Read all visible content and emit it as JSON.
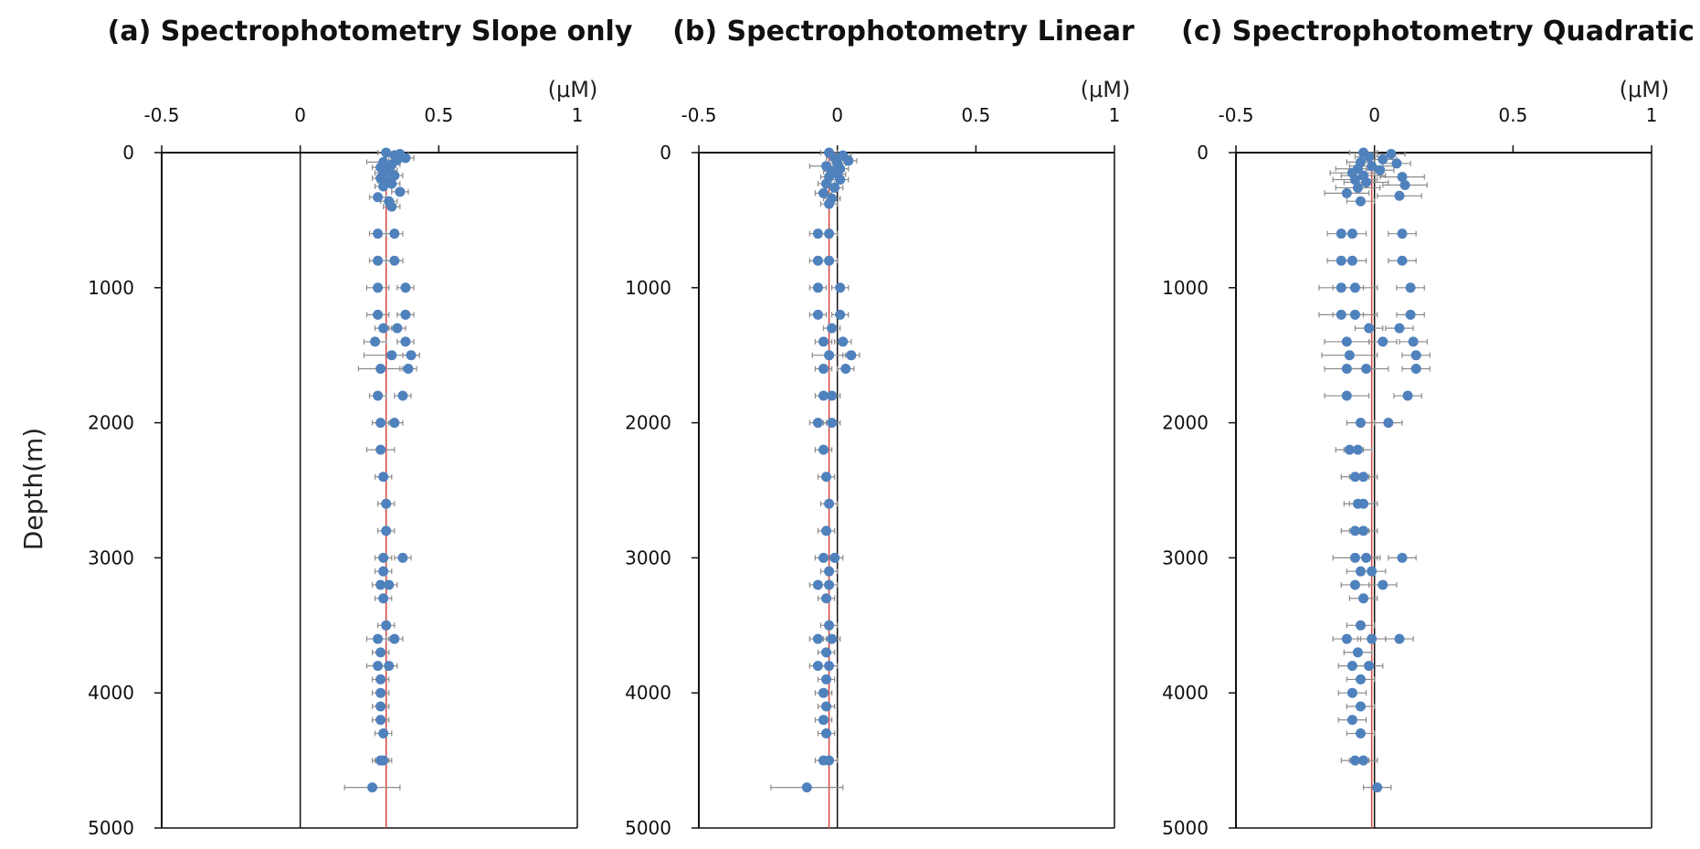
{
  "chart_data": [
    {
      "type": "scatter",
      "title": "(a) Spectrophotometry Slope only",
      "x_unit": "(μM)",
      "ylabel": "Depth(m)",
      "xlim": [
        -0.5,
        1
      ],
      "ylim": [
        0,
        5000
      ],
      "y_inverted": true,
      "x_ticks": [
        "-0.5",
        "0",
        "0.5",
        "1"
      ],
      "y_ticks": [
        "0",
        "1000",
        "2000",
        "3000",
        "4000",
        "5000"
      ],
      "reference_line_x": 0.31,
      "points": [
        {
          "x": 0.31,
          "y": 0,
          "err": 0.03
        },
        {
          "x": 0.36,
          "y": 10,
          "err": 0.03
        },
        {
          "x": 0.34,
          "y": 20,
          "err": 0.03
        },
        {
          "x": 0.38,
          "y": 40,
          "err": 0.03
        },
        {
          "x": 0.35,
          "y": 55,
          "err": 0.03
        },
        {
          "x": 0.3,
          "y": 70,
          "err": 0.06
        },
        {
          "x": 0.33,
          "y": 90,
          "err": 0.03
        },
        {
          "x": 0.29,
          "y": 110,
          "err": 0.03
        },
        {
          "x": 0.32,
          "y": 130,
          "err": 0.03
        },
        {
          "x": 0.3,
          "y": 150,
          "err": 0.03
        },
        {
          "x": 0.34,
          "y": 170,
          "err": 0.03
        },
        {
          "x": 0.29,
          "y": 190,
          "err": 0.03
        },
        {
          "x": 0.31,
          "y": 210,
          "err": 0.03
        },
        {
          "x": 0.33,
          "y": 230,
          "err": 0.03
        },
        {
          "x": 0.3,
          "y": 250,
          "err": 0.03
        },
        {
          "x": 0.36,
          "y": 290,
          "err": 0.03
        },
        {
          "x": 0.28,
          "y": 330,
          "err": 0.03
        },
        {
          "x": 0.32,
          "y": 360,
          "err": 0.03
        },
        {
          "x": 0.33,
          "y": 400,
          "err": 0.03
        },
        {
          "x": 0.28,
          "y": 600,
          "err": 0.03
        },
        {
          "x": 0.34,
          "y": 600,
          "err": 0.03
        },
        {
          "x": 0.28,
          "y": 800,
          "err": 0.03
        },
        {
          "x": 0.34,
          "y": 800,
          "err": 0.03
        },
        {
          "x": 0.28,
          "y": 1000,
          "err": 0.04
        },
        {
          "x": 0.38,
          "y": 1000,
          "err": 0.03
        },
        {
          "x": 0.28,
          "y": 1200,
          "err": 0.04
        },
        {
          "x": 0.38,
          "y": 1200,
          "err": 0.03
        },
        {
          "x": 0.3,
          "y": 1300,
          "err": 0.03
        },
        {
          "x": 0.35,
          "y": 1300,
          "err": 0.03
        },
        {
          "x": 0.27,
          "y": 1400,
          "err": 0.04
        },
        {
          "x": 0.38,
          "y": 1400,
          "err": 0.03
        },
        {
          "x": 0.33,
          "y": 1500,
          "err": 0.1
        },
        {
          "x": 0.4,
          "y": 1500,
          "err": 0.03
        },
        {
          "x": 0.29,
          "y": 1600,
          "err": 0.08
        },
        {
          "x": 0.39,
          "y": 1600,
          "err": 0.03
        },
        {
          "x": 0.28,
          "y": 1800,
          "err": 0.03
        },
        {
          "x": 0.37,
          "y": 1800,
          "err": 0.03
        },
        {
          "x": 0.29,
          "y": 2000,
          "err": 0.03
        },
        {
          "x": 0.34,
          "y": 2000,
          "err": 0.03
        },
        {
          "x": 0.29,
          "y": 2200,
          "err": 0.05
        },
        {
          "x": 0.3,
          "y": 2400,
          "err": 0.03
        },
        {
          "x": 0.31,
          "y": 2600,
          "err": 0.03
        },
        {
          "x": 0.31,
          "y": 2800,
          "err": 0.03
        },
        {
          "x": 0.3,
          "y": 3000,
          "err": 0.03
        },
        {
          "x": 0.37,
          "y": 3000,
          "err": 0.03
        },
        {
          "x": 0.3,
          "y": 3100,
          "err": 0.03
        },
        {
          "x": 0.29,
          "y": 3200,
          "err": 0.03
        },
        {
          "x": 0.32,
          "y": 3200,
          "err": 0.03
        },
        {
          "x": 0.3,
          "y": 3300,
          "err": 0.03
        },
        {
          "x": 0.31,
          "y": 3500,
          "err": 0.03
        },
        {
          "x": 0.28,
          "y": 3600,
          "err": 0.04
        },
        {
          "x": 0.34,
          "y": 3600,
          "err": 0.03
        },
        {
          "x": 0.29,
          "y": 3700,
          "err": 0.03
        },
        {
          "x": 0.28,
          "y": 3800,
          "err": 0.04
        },
        {
          "x": 0.32,
          "y": 3800,
          "err": 0.03
        },
        {
          "x": 0.29,
          "y": 3900,
          "err": 0.03
        },
        {
          "x": 0.29,
          "y": 4000,
          "err": 0.03
        },
        {
          "x": 0.29,
          "y": 4100,
          "err": 0.03
        },
        {
          "x": 0.29,
          "y": 4200,
          "err": 0.03
        },
        {
          "x": 0.3,
          "y": 4300,
          "err": 0.03
        },
        {
          "x": 0.29,
          "y": 4500,
          "err": 0.03
        },
        {
          "x": 0.3,
          "y": 4500,
          "err": 0.03
        },
        {
          "x": 0.26,
          "y": 4700,
          "err": 0.1
        }
      ]
    },
    {
      "type": "scatter",
      "title": "(b) Spectrophotometry Linear",
      "x_unit": "(μM)",
      "xlim": [
        -0.5,
        1
      ],
      "ylim": [
        0,
        5000
      ],
      "y_inverted": true,
      "x_ticks": [
        "-0.5",
        "0",
        "0.5",
        "1"
      ],
      "y_ticks": [
        "0",
        "1000",
        "2000",
        "3000",
        "4000",
        "5000"
      ],
      "reference_line_x": -0.03,
      "points": [
        {
          "x": -0.03,
          "y": 0,
          "err": 0.03
        },
        {
          "x": 0.02,
          "y": 20,
          "err": 0.03
        },
        {
          "x": -0.01,
          "y": 40,
          "err": 0.03
        },
        {
          "x": 0.04,
          "y": 60,
          "err": 0.03
        },
        {
          "x": 0.0,
          "y": 80,
          "err": 0.03
        },
        {
          "x": -0.04,
          "y": 100,
          "err": 0.06
        },
        {
          "x": 0.01,
          "y": 120,
          "err": 0.03
        },
        {
          "x": -0.02,
          "y": 140,
          "err": 0.03
        },
        {
          "x": 0.0,
          "y": 160,
          "err": 0.03
        },
        {
          "x": -0.03,
          "y": 180,
          "err": 0.03
        },
        {
          "x": 0.01,
          "y": 200,
          "err": 0.03
        },
        {
          "x": -0.04,
          "y": 230,
          "err": 0.03
        },
        {
          "x": -0.01,
          "y": 260,
          "err": 0.03
        },
        {
          "x": -0.05,
          "y": 300,
          "err": 0.03
        },
        {
          "x": -0.02,
          "y": 340,
          "err": 0.03
        },
        {
          "x": -0.03,
          "y": 380,
          "err": 0.03
        },
        {
          "x": -0.07,
          "y": 600,
          "err": 0.03
        },
        {
          "x": -0.03,
          "y": 600,
          "err": 0.03
        },
        {
          "x": -0.07,
          "y": 800,
          "err": 0.03
        },
        {
          "x": -0.03,
          "y": 800,
          "err": 0.03
        },
        {
          "x": -0.07,
          "y": 1000,
          "err": 0.03
        },
        {
          "x": 0.01,
          "y": 1000,
          "err": 0.03
        },
        {
          "x": -0.07,
          "y": 1200,
          "err": 0.03
        },
        {
          "x": 0.01,
          "y": 1200,
          "err": 0.03
        },
        {
          "x": -0.02,
          "y": 1300,
          "err": 0.03
        },
        {
          "x": -0.05,
          "y": 1400,
          "err": 0.03
        },
        {
          "x": 0.02,
          "y": 1400,
          "err": 0.03
        },
        {
          "x": -0.03,
          "y": 1500,
          "err": 0.06
        },
        {
          "x": 0.05,
          "y": 1500,
          "err": 0.03
        },
        {
          "x": -0.05,
          "y": 1600,
          "err": 0.03
        },
        {
          "x": 0.03,
          "y": 1600,
          "err": 0.03
        },
        {
          "x": -0.05,
          "y": 1800,
          "err": 0.03
        },
        {
          "x": -0.02,
          "y": 1800,
          "err": 0.03
        },
        {
          "x": -0.07,
          "y": 2000,
          "err": 0.03
        },
        {
          "x": -0.02,
          "y": 2000,
          "err": 0.03
        },
        {
          "x": -0.05,
          "y": 2200,
          "err": 0.03
        },
        {
          "x": -0.04,
          "y": 2400,
          "err": 0.03
        },
        {
          "x": -0.03,
          "y": 2600,
          "err": 0.03
        },
        {
          "x": -0.04,
          "y": 2800,
          "err": 0.03
        },
        {
          "x": -0.05,
          "y": 3000,
          "err": 0.03
        },
        {
          "x": -0.01,
          "y": 3000,
          "err": 0.03
        },
        {
          "x": -0.03,
          "y": 3100,
          "err": 0.03
        },
        {
          "x": -0.07,
          "y": 3200,
          "err": 0.03
        },
        {
          "x": -0.03,
          "y": 3200,
          "err": 0.03
        },
        {
          "x": -0.04,
          "y": 3300,
          "err": 0.03
        },
        {
          "x": -0.03,
          "y": 3500,
          "err": 0.03
        },
        {
          "x": -0.07,
          "y": 3600,
          "err": 0.03
        },
        {
          "x": -0.02,
          "y": 3600,
          "err": 0.03
        },
        {
          "x": -0.04,
          "y": 3700,
          "err": 0.03
        },
        {
          "x": -0.07,
          "y": 3800,
          "err": 0.03
        },
        {
          "x": -0.03,
          "y": 3800,
          "err": 0.03
        },
        {
          "x": -0.04,
          "y": 3900,
          "err": 0.03
        },
        {
          "x": -0.05,
          "y": 4000,
          "err": 0.03
        },
        {
          "x": -0.04,
          "y": 4100,
          "err": 0.03
        },
        {
          "x": -0.05,
          "y": 4200,
          "err": 0.03
        },
        {
          "x": -0.04,
          "y": 4300,
          "err": 0.03
        },
        {
          "x": -0.05,
          "y": 4500,
          "err": 0.03
        },
        {
          "x": -0.03,
          "y": 4500,
          "err": 0.03
        },
        {
          "x": -0.11,
          "y": 4700,
          "err": 0.13
        }
      ]
    },
    {
      "type": "scatter",
      "title": "(c) Spectrophotometry Quadratic",
      "x_unit": "(μM)",
      "xlim": [
        -0.5,
        1
      ],
      "ylim": [
        0,
        5000
      ],
      "y_inverted": true,
      "x_ticks": [
        "-0.5",
        "0",
        "0.5",
        "1"
      ],
      "y_ticks": [
        "0",
        "1000",
        "2000",
        "3000",
        "4000",
        "5000"
      ],
      "reference_line_x": -0.01,
      "points": [
        {
          "x": -0.04,
          "y": 0,
          "err": 0.05
        },
        {
          "x": 0.06,
          "y": 10,
          "err": 0.05
        },
        {
          "x": -0.02,
          "y": 30,
          "err": 0.05
        },
        {
          "x": 0.03,
          "y": 50,
          "err": 0.05
        },
        {
          "x": -0.05,
          "y": 70,
          "err": 0.05
        },
        {
          "x": 0.08,
          "y": 80,
          "err": 0.05
        },
        {
          "x": -0.01,
          "y": 100,
          "err": 0.08
        },
        {
          "x": -0.06,
          "y": 120,
          "err": 0.08
        },
        {
          "x": 0.02,
          "y": 130,
          "err": 0.05
        },
        {
          "x": -0.08,
          "y": 150,
          "err": 0.08
        },
        {
          "x": -0.04,
          "y": 170,
          "err": 0.08
        },
        {
          "x": 0.1,
          "y": 180,
          "err": 0.08
        },
        {
          "x": -0.07,
          "y": 200,
          "err": 0.08
        },
        {
          "x": -0.03,
          "y": 220,
          "err": 0.08
        },
        {
          "x": 0.11,
          "y": 240,
          "err": 0.08
        },
        {
          "x": -0.06,
          "y": 260,
          "err": 0.08
        },
        {
          "x": -0.1,
          "y": 300,
          "err": 0.08
        },
        {
          "x": 0.09,
          "y": 320,
          "err": 0.08
        },
        {
          "x": -0.05,
          "y": 360,
          "err": 0.05
        },
        {
          "x": -0.12,
          "y": 600,
          "err": 0.05
        },
        {
          "x": -0.08,
          "y": 600,
          "err": 0.05
        },
        {
          "x": 0.1,
          "y": 600,
          "err": 0.05
        },
        {
          "x": -0.12,
          "y": 800,
          "err": 0.05
        },
        {
          "x": -0.08,
          "y": 800,
          "err": 0.05
        },
        {
          "x": 0.1,
          "y": 800,
          "err": 0.05
        },
        {
          "x": -0.12,
          "y": 1000,
          "err": 0.08
        },
        {
          "x": -0.07,
          "y": 1000,
          "err": 0.08
        },
        {
          "x": 0.13,
          "y": 1000,
          "err": 0.05
        },
        {
          "x": -0.12,
          "y": 1200,
          "err": 0.08
        },
        {
          "x": -0.07,
          "y": 1200,
          "err": 0.08
        },
        {
          "x": 0.13,
          "y": 1200,
          "err": 0.05
        },
        {
          "x": -0.02,
          "y": 1300,
          "err": 0.05
        },
        {
          "x": 0.09,
          "y": 1300,
          "err": 0.05
        },
        {
          "x": -0.1,
          "y": 1400,
          "err": 0.08
        },
        {
          "x": 0.03,
          "y": 1400,
          "err": 0.05
        },
        {
          "x": 0.14,
          "y": 1400,
          "err": 0.05
        },
        {
          "x": -0.09,
          "y": 1500,
          "err": 0.1
        },
        {
          "x": 0.15,
          "y": 1500,
          "err": 0.05
        },
        {
          "x": -0.1,
          "y": 1600,
          "err": 0.08
        },
        {
          "x": -0.03,
          "y": 1600,
          "err": 0.08
        },
        {
          "x": 0.15,
          "y": 1600,
          "err": 0.05
        },
        {
          "x": -0.1,
          "y": 1800,
          "err": 0.08
        },
        {
          "x": 0.12,
          "y": 1800,
          "err": 0.05
        },
        {
          "x": -0.05,
          "y": 2000,
          "err": 0.05
        },
        {
          "x": 0.05,
          "y": 2000,
          "err": 0.05
        },
        {
          "x": -0.09,
          "y": 2200,
          "err": 0.05
        },
        {
          "x": -0.06,
          "y": 2200,
          "err": 0.05
        },
        {
          "x": -0.07,
          "y": 2400,
          "err": 0.05
        },
        {
          "x": -0.04,
          "y": 2400,
          "err": 0.05
        },
        {
          "x": -0.06,
          "y": 2600,
          "err": 0.05
        },
        {
          "x": -0.04,
          "y": 2600,
          "err": 0.05
        },
        {
          "x": -0.07,
          "y": 2800,
          "err": 0.05
        },
        {
          "x": -0.04,
          "y": 2800,
          "err": 0.05
        },
        {
          "x": -0.07,
          "y": 3000,
          "err": 0.08
        },
        {
          "x": -0.03,
          "y": 3000,
          "err": 0.05
        },
        {
          "x": 0.1,
          "y": 3000,
          "err": 0.05
        },
        {
          "x": -0.05,
          "y": 3100,
          "err": 0.05
        },
        {
          "x": -0.01,
          "y": 3100,
          "err": 0.05
        },
        {
          "x": -0.07,
          "y": 3200,
          "err": 0.05
        },
        {
          "x": 0.03,
          "y": 3200,
          "err": 0.05
        },
        {
          "x": -0.04,
          "y": 3300,
          "err": 0.05
        },
        {
          "x": -0.05,
          "y": 3500,
          "err": 0.05
        },
        {
          "x": -0.1,
          "y": 3600,
          "err": 0.05
        },
        {
          "x": -0.01,
          "y": 3600,
          "err": 0.05
        },
        {
          "x": 0.09,
          "y": 3600,
          "err": 0.05
        },
        {
          "x": -0.06,
          "y": 3700,
          "err": 0.05
        },
        {
          "x": -0.08,
          "y": 3800,
          "err": 0.05
        },
        {
          "x": -0.02,
          "y": 3800,
          "err": 0.05
        },
        {
          "x": -0.05,
          "y": 3900,
          "err": 0.05
        },
        {
          "x": -0.08,
          "y": 4000,
          "err": 0.05
        },
        {
          "x": -0.05,
          "y": 4100,
          "err": 0.05
        },
        {
          "x": -0.08,
          "y": 4200,
          "err": 0.05
        },
        {
          "x": -0.05,
          "y": 4300,
          "err": 0.05
        },
        {
          "x": -0.07,
          "y": 4500,
          "err": 0.05
        },
        {
          "x": -0.04,
          "y": 4500,
          "err": 0.05
        },
        {
          "x": 0.01,
          "y": 4700,
          "err": 0.05
        }
      ]
    }
  ],
  "colors": {
    "point": "#4f81bd",
    "error_bar": "#8c8c8c",
    "reference_line": "#d4473f",
    "axis": "#111111"
  }
}
